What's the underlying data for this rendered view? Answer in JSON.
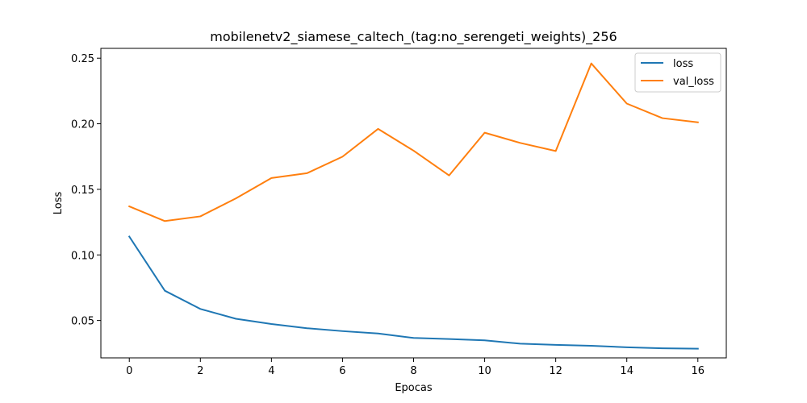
{
  "chart_data": {
    "type": "line",
    "title": "mobilenetv2_siamese_caltech_(tag:no_serengeti_weights)_256",
    "xlabel": "Epocas",
    "ylabel": "Loss",
    "x": [
      0,
      1,
      2,
      3,
      4,
      5,
      6,
      7,
      8,
      9,
      10,
      11,
      12,
      13,
      14,
      15,
      16
    ],
    "xlim": [
      -0.8,
      16.8
    ],
    "ylim": [
      0.0215,
      0.2575
    ],
    "xticks": [
      0,
      2,
      4,
      6,
      8,
      10,
      12,
      14,
      16
    ],
    "xtick_labels": [
      "0",
      "2",
      "4",
      "6",
      "8",
      "10",
      "12",
      "14",
      "16"
    ],
    "yticks": [
      0.05,
      0.1,
      0.15,
      0.2,
      0.25
    ],
    "ytick_labels": [
      "0.05",
      "0.10",
      "0.15",
      "0.20",
      "0.25"
    ],
    "grid": false,
    "legend_position": "top-right",
    "series": [
      {
        "name": "loss",
        "color": "#1f77b4",
        "values": [
          0.114,
          0.0727,
          0.0588,
          0.0513,
          0.0473,
          0.0441,
          0.0419,
          0.0401,
          0.0367,
          0.0359,
          0.0349,
          0.0323,
          0.0314,
          0.0307,
          0.0296,
          0.0288,
          0.0285
        ]
      },
      {
        "name": "val_loss",
        "color": "#ff7f0e",
        "values": [
          0.137,
          0.1258,
          0.1294,
          0.1431,
          0.1586,
          0.1623,
          0.1749,
          0.1961,
          0.1795,
          0.1606,
          0.1932,
          0.1854,
          0.1792,
          0.246,
          0.2154,
          0.2043,
          0.2011
        ]
      }
    ]
  }
}
